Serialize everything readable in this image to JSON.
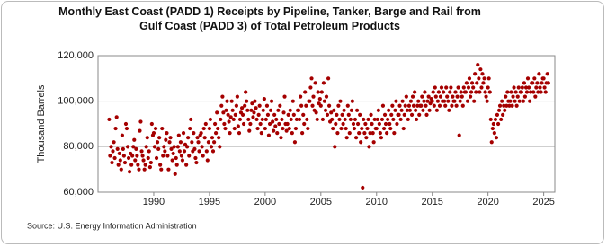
{
  "chart_data": {
    "type": "scatter",
    "title": "Monthly East Coast (PADD 1) Receipts by Pipeline, Tanker, Barge and Rail from Gulf Coast (PADD 3) of Total Petroleum Products",
    "ylabel": "Thousand Barrels",
    "source": "Source: U.S. Energy Information Administration",
    "color": "#a50000",
    "grid": true,
    "xlim": [
      1985,
      2026
    ],
    "xticks": [
      1990,
      1995,
      2000,
      2005,
      2010,
      2015,
      2020,
      2025
    ],
    "ylim": [
      60000,
      120000
    ],
    "yticks": [
      {
        "value": 60000,
        "label": "60,000"
      },
      {
        "value": 80000,
        "label": "80,000"
      },
      {
        "value": 100000,
        "label": "100,000"
      },
      {
        "value": 120000,
        "label": "120,000"
      }
    ],
    "x": [
      1986,
      1986.08,
      1986.17,
      1986.25,
      1986.33,
      1986.42,
      1986.5,
      1986.58,
      1986.67,
      1986.75,
      1986.83,
      1986.92,
      1987,
      1987.08,
      1987.17,
      1987.25,
      1987.33,
      1987.42,
      1987.5,
      1987.58,
      1987.67,
      1987.75,
      1987.83,
      1987.92,
      1988,
      1988.08,
      1988.17,
      1988.25,
      1988.33,
      1988.42,
      1988.5,
      1988.58,
      1988.67,
      1988.75,
      1988.83,
      1988.92,
      1989,
      1989.08,
      1989.17,
      1989.25,
      1989.33,
      1989.42,
      1989.5,
      1989.58,
      1989.67,
      1989.75,
      1989.83,
      1989.92,
      1990,
      1990.08,
      1990.17,
      1990.25,
      1990.33,
      1990.42,
      1990.5,
      1990.58,
      1990.67,
      1990.75,
      1990.83,
      1990.92,
      1991,
      1991.08,
      1991.17,
      1991.25,
      1991.33,
      1991.42,
      1991.5,
      1991.58,
      1991.67,
      1991.75,
      1991.83,
      1991.92,
      1992,
      1992.08,
      1992.17,
      1992.25,
      1992.33,
      1992.42,
      1992.5,
      1992.58,
      1992.67,
      1992.75,
      1992.83,
      1992.92,
      1993,
      1993.08,
      1993.17,
      1993.25,
      1993.33,
      1993.42,
      1993.5,
      1993.58,
      1993.67,
      1993.75,
      1993.83,
      1993.92,
      1994,
      1994.08,
      1994.17,
      1994.25,
      1994.33,
      1994.42,
      1994.5,
      1994.58,
      1994.67,
      1994.75,
      1994.83,
      1994.92,
      1995,
      1995.08,
      1995.17,
      1995.25,
      1995.33,
      1995.42,
      1995.5,
      1995.58,
      1995.67,
      1995.75,
      1995.83,
      1995.92,
      1996,
      1996.08,
      1996.17,
      1996.25,
      1996.33,
      1996.42,
      1996.5,
      1996.58,
      1996.67,
      1996.75,
      1996.83,
      1996.92,
      1997,
      1997.08,
      1997.17,
      1997.25,
      1997.33,
      1997.42,
      1997.5,
      1997.58,
      1997.67,
      1997.75,
      1997.83,
      1997.92,
      1998,
      1998.08,
      1998.17,
      1998.25,
      1998.33,
      1998.42,
      1998.5,
      1998.58,
      1998.67,
      1998.75,
      1998.83,
      1998.92,
      1999,
      1999.08,
      1999.17,
      1999.25,
      1999.33,
      1999.42,
      1999.5,
      1999.58,
      1999.67,
      1999.75,
      1999.83,
      1999.92,
      2000,
      2000.08,
      2000.17,
      2000.25,
      2000.33,
      2000.42,
      2000.5,
      2000.58,
      2000.67,
      2000.75,
      2000.83,
      2000.92,
      2001,
      2001.08,
      2001.17,
      2001.25,
      2001.33,
      2001.42,
      2001.5,
      2001.58,
      2001.67,
      2001.75,
      2001.83,
      2001.92,
      2002,
      2002.08,
      2002.17,
      2002.25,
      2002.33,
      2002.42,
      2002.5,
      2002.58,
      2002.67,
      2002.75,
      2002.83,
      2002.92,
      2003,
      2003.08,
      2003.17,
      2003.25,
      2003.33,
      2003.42,
      2003.5,
      2003.58,
      2003.67,
      2003.75,
      2003.83,
      2003.92,
      2004,
      2004.08,
      2004.17,
      2004.25,
      2004.33,
      2004.42,
      2004.5,
      2004.58,
      2004.67,
      2004.75,
      2004.83,
      2004.92,
      2005,
      2005.08,
      2005.17,
      2005.25,
      2005.33,
      2005.42,
      2005.5,
      2005.58,
      2005.67,
      2005.75,
      2005.83,
      2005.92,
      2006,
      2006.08,
      2006.17,
      2006.25,
      2006.33,
      2006.42,
      2006.5,
      2006.58,
      2006.67,
      2006.75,
      2006.83,
      2006.92,
      2007,
      2007.08,
      2007.17,
      2007.25,
      2007.33,
      2007.42,
      2007.5,
      2007.58,
      2007.67,
      2007.75,
      2007.83,
      2007.92,
      2008,
      2008.08,
      2008.17,
      2008.25,
      2008.33,
      2008.42,
      2008.5,
      2008.58,
      2008.67,
      2008.75,
      2008.83,
      2008.92,
      2009,
      2009.08,
      2009.17,
      2009.25,
      2009.33,
      2009.42,
      2009.5,
      2009.58,
      2009.67,
      2009.75,
      2009.83,
      2009.92,
      2010,
      2010.08,
      2010.17,
      2010.25,
      2010.33,
      2010.42,
      2010.5,
      2010.58,
      2010.67,
      2010.75,
      2010.83,
      2010.92,
      2011,
      2011.08,
      2011.17,
      2011.25,
      2011.33,
      2011.42,
      2011.5,
      2011.58,
      2011.67,
      2011.75,
      2011.83,
      2011.92,
      2012,
      2012.08,
      2012.17,
      2012.25,
      2012.33,
      2012.42,
      2012.5,
      2012.58,
      2012.67,
      2012.75,
      2012.83,
      2012.92,
      2013,
      2013.08,
      2013.17,
      2013.25,
      2013.33,
      2013.42,
      2013.5,
      2013.58,
      2013.67,
      2013.75,
      2013.83,
      2013.92,
      2014,
      2014.08,
      2014.17,
      2014.25,
      2014.33,
      2014.42,
      2014.5,
      2014.58,
      2014.67,
      2014.75,
      2014.83,
      2014.92,
      2015,
      2015.08,
      2015.17,
      2015.25,
      2015.33,
      2015.42,
      2015.5,
      2015.58,
      2015.67,
      2015.75,
      2015.83,
      2015.92,
      2016,
      2016.08,
      2016.17,
      2016.25,
      2016.33,
      2016.42,
      2016.5,
      2016.58,
      2016.67,
      2016.75,
      2016.83,
      2016.92,
      2017,
      2017.08,
      2017.17,
      2017.25,
      2017.33,
      2017.42,
      2017.5,
      2017.58,
      2017.67,
      2017.75,
      2017.83,
      2017.92,
      2018,
      2018.08,
      2018.17,
      2018.25,
      2018.33,
      2018.42,
      2018.5,
      2018.58,
      2018.67,
      2018.75,
      2018.83,
      2018.92,
      2019,
      2019.08,
      2019.17,
      2019.25,
      2019.33,
      2019.42,
      2019.5,
      2019.58,
      2019.67,
      2019.75,
      2019.83,
      2019.92,
      2020,
      2020.08,
      2020.17,
      2020.25,
      2020.33,
      2020.42,
      2020.5,
      2020.58,
      2020.67,
      2020.75,
      2020.83,
      2020.92,
      2021,
      2021.08,
      2021.17,
      2021.25,
      2021.33,
      2021.42,
      2021.5,
      2021.58,
      2021.67,
      2021.75,
      2021.83,
      2021.92,
      2022,
      2022.08,
      2022.17,
      2022.25,
      2022.33,
      2022.42,
      2022.5,
      2022.58,
      2022.67,
      2022.75,
      2022.83,
      2022.92,
      2023,
      2023.08,
      2023.17,
      2023.25,
      2023.33,
      2023.42,
      2023.5,
      2023.58,
      2023.67,
      2023.75,
      2023.83,
      2023.92,
      2024,
      2024.08,
      2024.17,
      2024.25,
      2024.33,
      2024.42,
      2024.5,
      2024.58,
      2024.67,
      2024.75,
      2024.83,
      2024.92,
      2025,
      2025.08,
      2025.17,
      2025.25,
      2025.33,
      2025.42
    ],
    "values": [
      92000,
      76000,
      80000,
      73000,
      78000,
      82000,
      75000,
      88000,
      93000,
      79000,
      72000,
      77000,
      74000,
      70000,
      85000,
      79000,
      76000,
      73000,
      90000,
      88000,
      80000,
      75000,
      69000,
      77000,
      72000,
      76000,
      80000,
      83000,
      74000,
      79000,
      76000,
      72000,
      70000,
      87000,
      91000,
      78000,
      76000,
      74000,
      70000,
      72000,
      80000,
      84000,
      75000,
      78000,
      71000,
      73000,
      90000,
      85000,
      86000,
      80000,
      88000,
      75000,
      82000,
      79000,
      84000,
      72000,
      70000,
      88000,
      76000,
      80000,
      78000,
      83000,
      86000,
      76000,
      70000,
      82000,
      84000,
      79000,
      74000,
      77000,
      80000,
      68000,
      75000,
      72000,
      80000,
      85000,
      78000,
      82000,
      76000,
      74000,
      86000,
      78000,
      81000,
      72000,
      80000,
      84000,
      76000,
      88000,
      92000,
      82000,
      78000,
      86000,
      79000,
      75000,
      73000,
      84000,
      82000,
      78000,
      85000,
      86000,
      80000,
      76000,
      88000,
      84000,
      90000,
      78000,
      74000,
      82000,
      88000,
      92000,
      80000,
      84000,
      78000,
      82000,
      90000,
      86000,
      95000,
      88000,
      84000,
      80000,
      92000,
      98000,
      102000,
      95000,
      90000,
      88000,
      96000,
      100000,
      94000,
      91000,
      86000,
      93000,
      100000,
      96000,
      92000,
      88000,
      94000,
      98000,
      102000,
      89000,
      86000,
      92000,
      95000,
      97000,
      94000,
      90000,
      98000,
      104000,
      100000,
      96000,
      92000,
      87000,
      90000,
      96000,
      99000,
      93000,
      95000,
      100000,
      97000,
      92000,
      88000,
      94000,
      98000,
      90000,
      86000,
      92000,
      96000,
      101000,
      88000,
      92000,
      98000,
      94000,
      85000,
      90000,
      96000,
      100000,
      91000,
      87000,
      94000,
      89000,
      92000,
      86000,
      96000,
      90000,
      98000,
      84000,
      92000,
      88000,
      95000,
      102000,
      90000,
      87000,
      90000,
      94000,
      88000,
      96000,
      92000,
      86000,
      100000,
      94000,
      82000,
      88000,
      92000,
      96000,
      96000,
      92000,
      102000,
      98000,
      86000,
      94000,
      90000,
      104000,
      98000,
      92000,
      88000,
      100000,
      100000,
      106000,
      110000,
      98000,
      102000,
      96000,
      108000,
      95000,
      92000,
      104000,
      99000,
      101000,
      98000,
      104000,
      92000,
      108000,
      100000,
      96000,
      102000,
      94000,
      110000,
      98000,
      91000,
      95000,
      92000,
      88000,
      96000,
      80000,
      90000,
      94000,
      86000,
      98000,
      92000,
      100000,
      88000,
      94000,
      90000,
      96000,
      92000,
      88000,
      84000,
      98000,
      94000,
      86000,
      92000,
      96000,
      100000,
      90000,
      88000,
      92000,
      84000,
      96000,
      90000,
      86000,
      94000,
      82000,
      88000,
      62000,
      92000,
      86000,
      90000,
      84000,
      88000,
      92000,
      80000,
      86000,
      94000,
      90000,
      86000,
      82000,
      92000,
      88000,
      88000,
      92000,
      96000,
      90000,
      86000,
      84000,
      92000,
      98000,
      88000,
      94000,
      90000,
      86000,
      92000,
      96000,
      90000,
      88000,
      94000,
      98000,
      92000,
      86000,
      96000,
      100000,
      90000,
      94000,
      94000,
      98000,
      92000,
      96000,
      100000,
      88000,
      94000,
      98000,
      102000,
      96000,
      92000,
      98000,
      96000,
      100000,
      94000,
      102000,
      98000,
      104000,
      96000,
      92000,
      98000,
      100000,
      94000,
      98000,
      98000,
      102000,
      96000,
      100000,
      104000,
      98000,
      94000,
      100000,
      102000,
      96000,
      99000,
      101000,
      100000,
      104000,
      98000,
      106000,
      102000,
      96000,
      100000,
      104000,
      98000,
      102000,
      106000,
      100000,
      104000,
      100000,
      98000,
      106000,
      102000,
      100000,
      96000,
      104000,
      106000,
      98000,
      102000,
      100000,
      100000,
      104000,
      98000,
      102000,
      106000,
      85000,
      100000,
      104000,
      102000,
      98000,
      106000,
      104000,
      104000,
      108000,
      100000,
      106000,
      110000,
      102000,
      104000,
      108000,
      106000,
      100000,
      112000,
      104000,
      108000,
      116000,
      110000,
      104000,
      114000,
      106000,
      112000,
      108000,
      110000,
      104000,
      102000,
      100000,
      106000,
      110000,
      104000,
      92000,
      82000,
      88000,
      90000,
      86000,
      92000,
      84000,
      94000,
      90000,
      96000,
      98000,
      92000,
      100000,
      94000,
      98000,
      96000,
      102000,
      98000,
      104000,
      100000,
      98000,
      100000,
      104000,
      98000,
      102000,
      106000,
      100000,
      104000,
      98000,
      102000,
      106000,
      100000,
      104000,
      104000,
      106000,
      100000,
      108000,
      102000,
      106000,
      104000,
      110000,
      106000,
      100000,
      104000,
      108000,
      108000,
      104000,
      110000,
      102000,
      106000,
      108000,
      104000,
      112000,
      106000,
      104000,
      108000,
      110000,
      110000,
      106000,
      104000,
      108000,
      112000,
      108000
    ]
  }
}
